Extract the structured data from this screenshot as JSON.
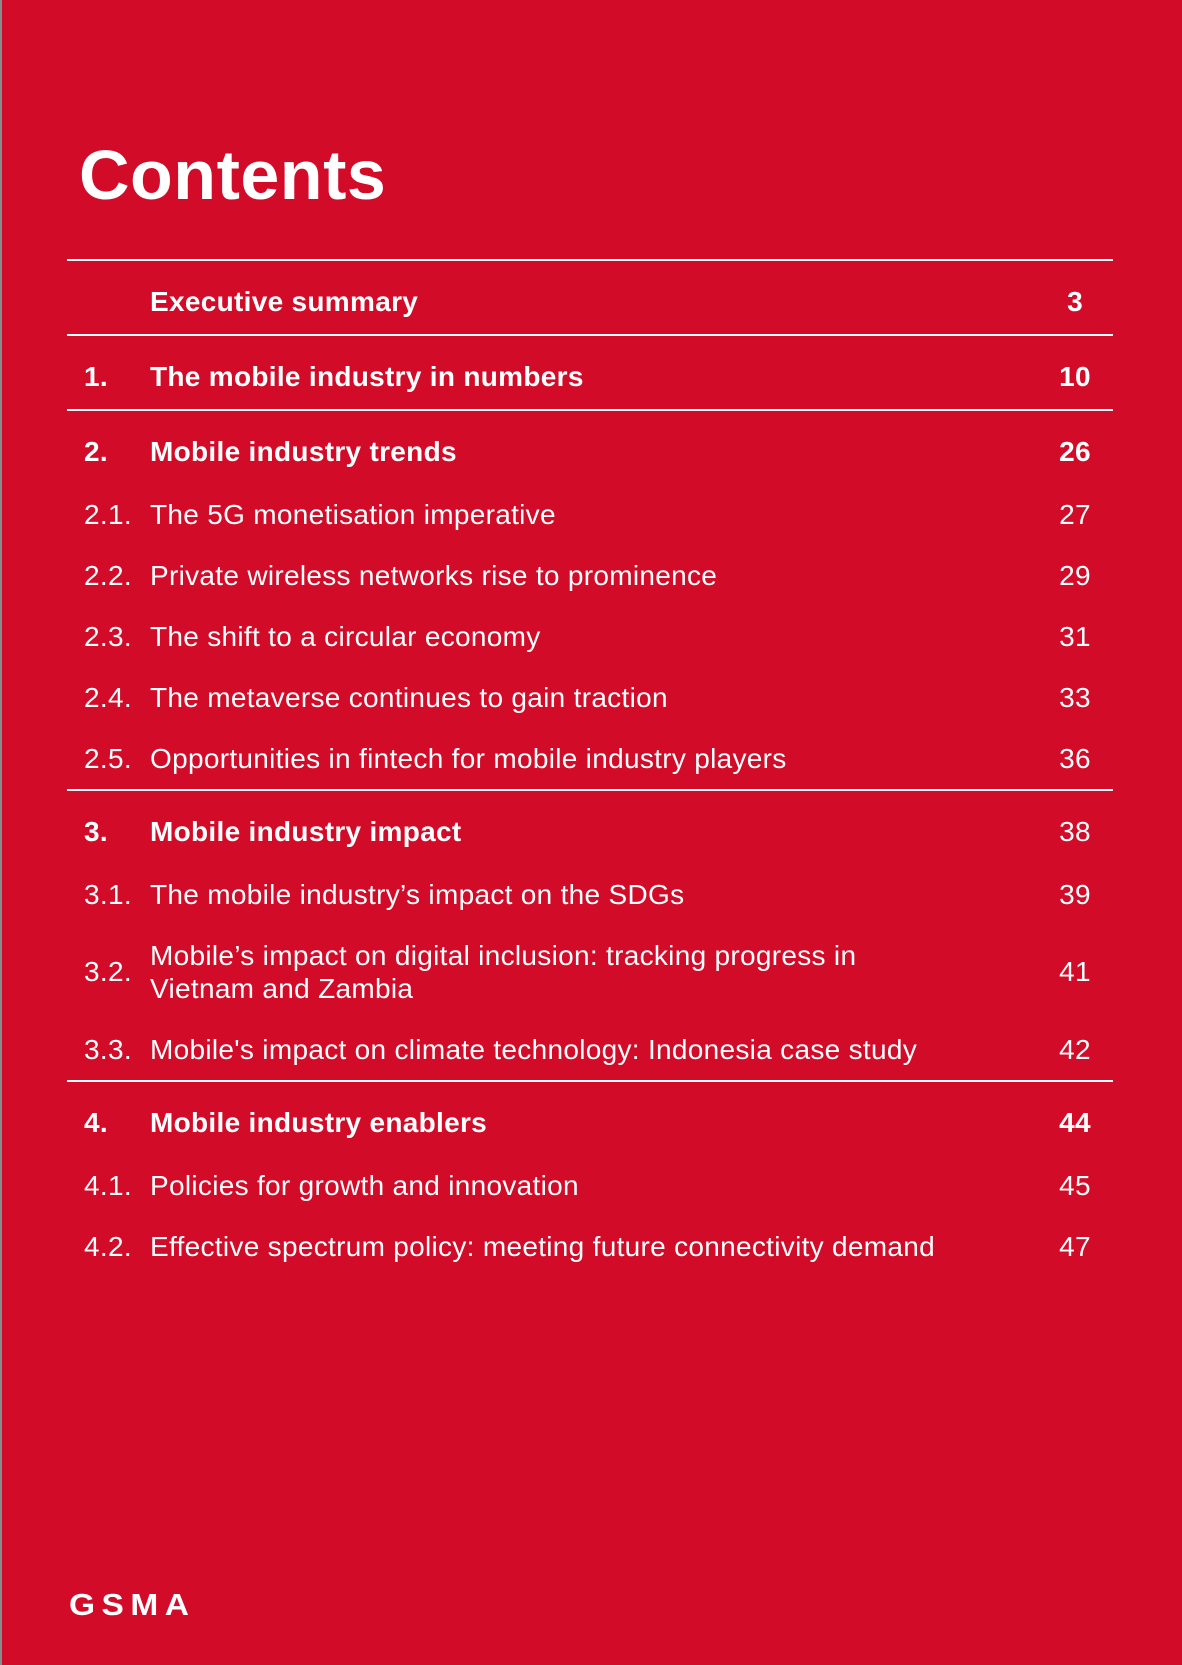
{
  "page": {
    "title": "Contents",
    "brand_logo": "GSMA"
  },
  "colors": {
    "background": "#D20B28",
    "text": "#FFFFFF",
    "divider": "#FFFFFF",
    "left_edge": "#888B8E"
  },
  "toc": {
    "rows": [
      {
        "num": "",
        "title": "Executive summary",
        "page": "3",
        "section": true,
        "page_bold": true,
        "divider_before": true
      },
      {
        "num": "1.",
        "title": "The mobile industry in numbers",
        "page": "10",
        "section": true,
        "page_bold": true,
        "divider_before": true
      },
      {
        "num": "2.",
        "title": "Mobile industry trends",
        "page": "26",
        "section": true,
        "page_bold": true,
        "divider_before": true
      },
      {
        "num": "2.1.",
        "title": "The 5G monetisation imperative",
        "page": "27"
      },
      {
        "num": "2.2.",
        "title": "Private wireless networks rise to prominence",
        "page": "29"
      },
      {
        "num": "2.3.",
        "title": "The shift to a circular economy",
        "page": "31"
      },
      {
        "num": "2.4.",
        "title": "The metaverse continues to gain traction",
        "page": "33"
      },
      {
        "num": "2.5.",
        "title": "Opportunities in fintech for mobile industry players",
        "page": "36"
      },
      {
        "num": "3.",
        "title": "Mobile industry impact",
        "page": "38",
        "section": true,
        "page_bold": false,
        "divider_before": true
      },
      {
        "num": "3.1.",
        "title": "The mobile industry’s impact on the SDGs",
        "page": "39"
      },
      {
        "num": "3.2.",
        "title": "Mobile’s impact on digital inclusion: tracking progress in\nVietnam and Zambia",
        "page": "41"
      },
      {
        "num": "3.3.",
        "title": "Mobile's impact on climate technology: Indonesia case study",
        "page": "42"
      },
      {
        "num": "4.",
        "title": "Mobile industry enablers",
        "page": "44",
        "section": true,
        "page_bold": true,
        "divider_before": true
      },
      {
        "num": "4.1.",
        "title": "Policies for growth and innovation",
        "page": "45"
      },
      {
        "num": "4.2.",
        "title": "Effective spectrum policy: meeting future connectivity demand",
        "page": "47"
      }
    ]
  }
}
